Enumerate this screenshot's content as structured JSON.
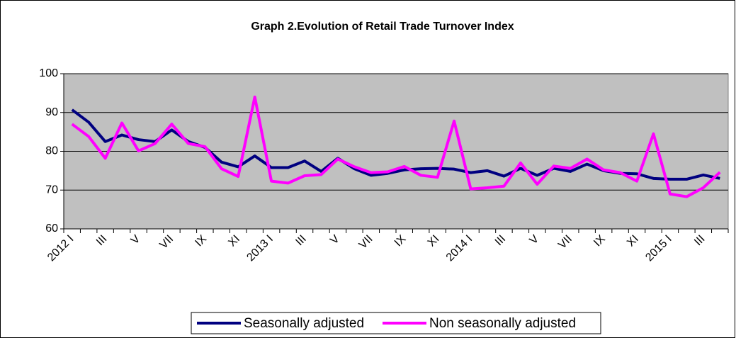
{
  "chart_data": {
    "type": "line",
    "title": "Graph 2.Evolution of Retail Trade Turnover Index",
    "categories": [
      "2012 I",
      null,
      "III",
      null,
      "V",
      null,
      "VII",
      null,
      "IX",
      null,
      "XI",
      null,
      "2013 I",
      null,
      "III",
      null,
      "V",
      null,
      "VII",
      null,
      "IX",
      null,
      "XI",
      null,
      "2014 I",
      null,
      "III",
      null,
      "V",
      null,
      "VII",
      null,
      "IX",
      null,
      "XI",
      null,
      "2015 I",
      null,
      "III",
      null
    ],
    "series": [
      {
        "name": "Seasonally adjusted",
        "color": "#000080",
        "values": [
          90.7,
          87.5,
          82.5,
          84.2,
          83.0,
          82.5,
          85.5,
          82.5,
          81.0,
          77.2,
          76.0,
          78.8,
          75.8,
          75.8,
          77.5,
          74.8,
          78.2,
          75.5,
          73.8,
          74.3,
          75.2,
          75.5,
          75.6,
          75.4,
          74.5,
          75.0,
          73.6,
          75.6,
          73.8,
          75.6,
          74.8,
          76.7,
          75.0,
          74.3,
          74.2,
          73.0,
          72.8,
          72.8,
          73.9,
          73.0
        ]
      },
      {
        "name": "Non seasonally adjusted",
        "color": "#ff00ff",
        "values": [
          87.0,
          83.8,
          78.2,
          87.3,
          80.1,
          82.0,
          87.0,
          82.0,
          81.2,
          75.5,
          73.5,
          94.0,
          72.3,
          71.8,
          73.7,
          74.0,
          78.0,
          76.0,
          74.5,
          74.7,
          76.1,
          73.8,
          73.3,
          87.8,
          70.3,
          70.6,
          71.0,
          77.0,
          71.5,
          76.2,
          75.6,
          78.0,
          75.2,
          74.5,
          72.3,
          84.5,
          69.0,
          68.3,
          70.6,
          74.6
        ]
      }
    ],
    "ylim": [
      60,
      100
    ],
    "yticks": [
      60,
      70,
      80,
      90,
      100
    ],
    "grid": true,
    "legend": "bottom"
  }
}
